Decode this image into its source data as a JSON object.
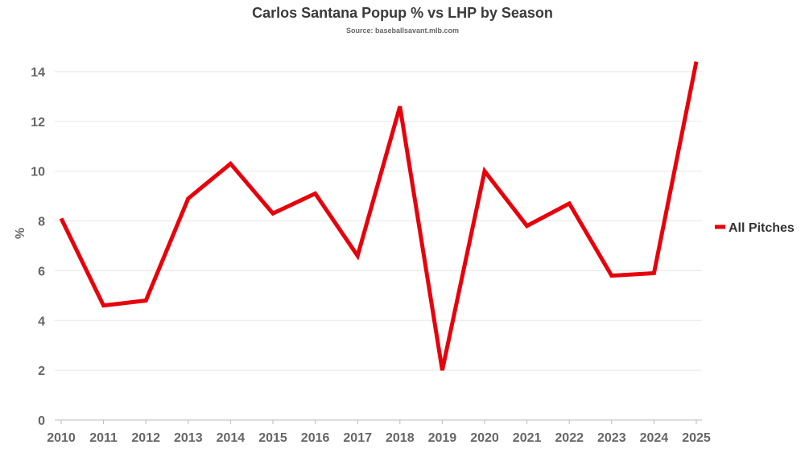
{
  "chart_data": {
    "type": "line",
    "title": "Carlos Santana Popup % vs LHP by Season",
    "subtitle": "Source: baseballsavant.mlb.com",
    "xlabel": "",
    "ylabel": "%",
    "x": [
      2010,
      2011,
      2012,
      2013,
      2014,
      2015,
      2016,
      2017,
      2018,
      2019,
      2020,
      2021,
      2022,
      2023,
      2024,
      2025
    ],
    "series": [
      {
        "name": "All Pitches",
        "color": "#e8000b",
        "values": [
          8.1,
          4.6,
          4.8,
          8.9,
          10.3,
          8.3,
          9.1,
          6.6,
          12.6,
          2.0,
          10.0,
          7.8,
          8.7,
          5.8,
          5.9,
          14.4
        ]
      }
    ],
    "ylim": [
      0,
      14
    ],
    "yticks": [
      0,
      2,
      4,
      6,
      8,
      10,
      12,
      14
    ],
    "grid": true,
    "legend_position": "right"
  }
}
